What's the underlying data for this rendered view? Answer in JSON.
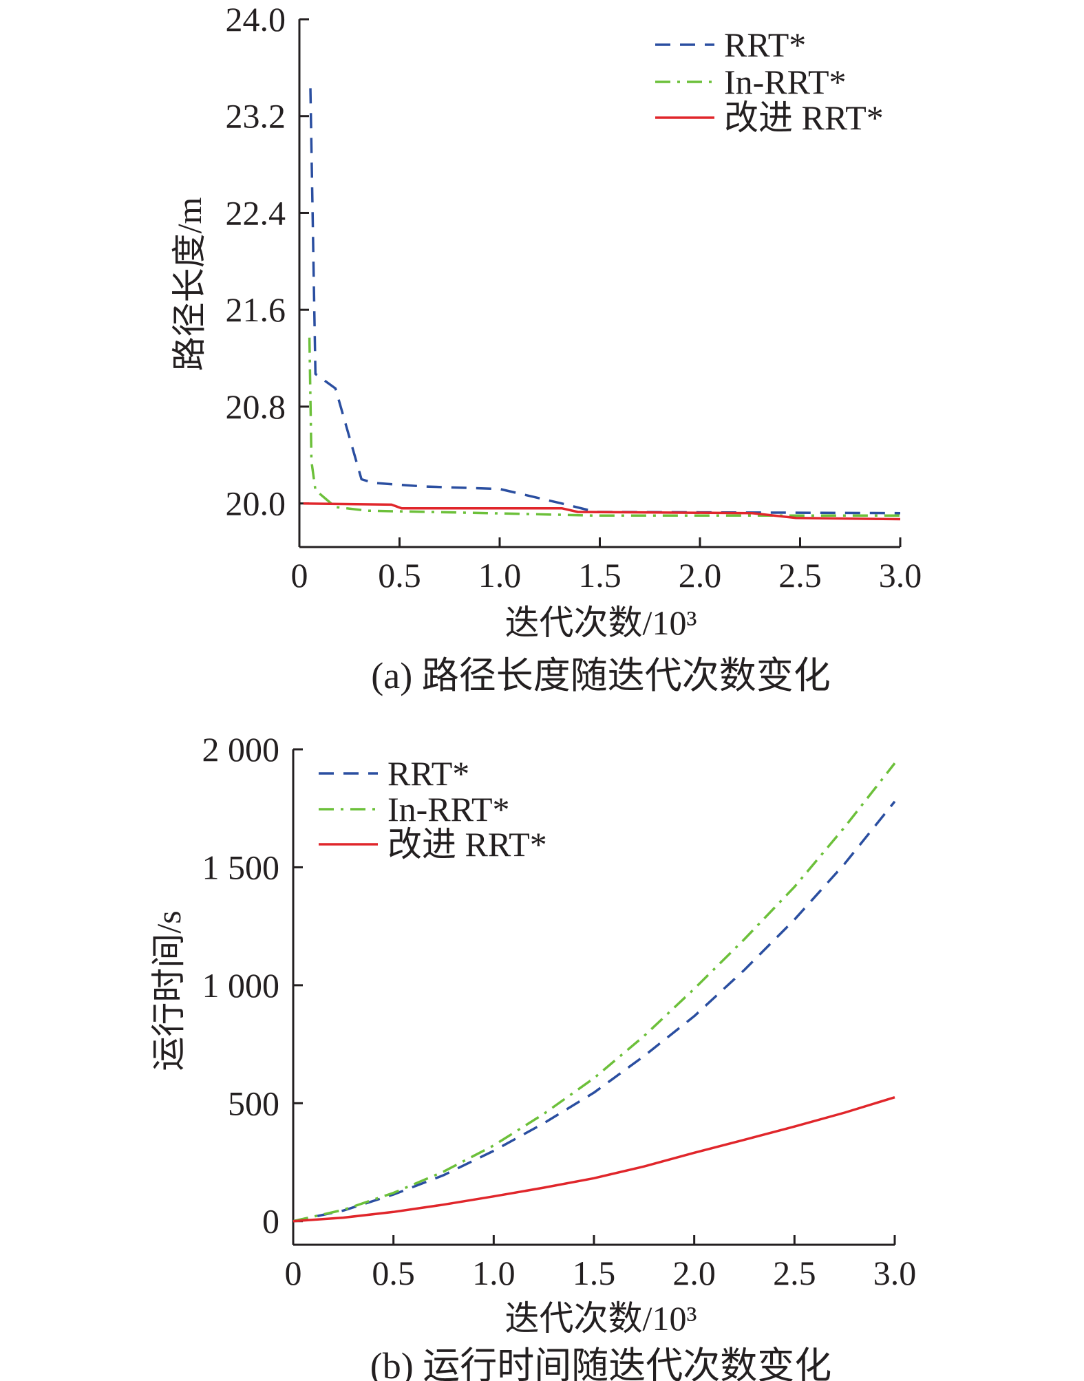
{
  "chart_data": [
    {
      "type": "line",
      "caption": "(a) 路径长度随迭代次数变化",
      "xlabel": "迭代次数/10³",
      "ylabel": "路径长度/m",
      "xlim": [
        0,
        3.0
      ],
      "ylim": [
        19.64,
        24.0
      ],
      "xticks": [
        "0",
        "0.5",
        "1.0",
        "1.5",
        "2.0",
        "2.5",
        "3.0"
      ],
      "xtick_values": [
        0,
        0.5,
        1.0,
        1.5,
        2.0,
        2.5,
        3.0
      ],
      "yticks": [
        "20.0",
        "20.8",
        "21.6",
        "22.4",
        "23.2",
        "24.0"
      ],
      "ytick_values": [
        20.0,
        20.8,
        21.6,
        22.4,
        23.2,
        24.0
      ],
      "grid": false,
      "legend_position": "top-right",
      "series": [
        {
          "name": "RRT*",
          "color": "#2a4ea0",
          "style": "dashed",
          "x": [
            0.055,
            0.08,
            0.18,
            0.31,
            0.37,
            0.62,
            1.0,
            1.31,
            1.48,
            3.0
          ],
          "y": [
            23.43,
            21.07,
            20.95,
            20.2,
            20.17,
            20.14,
            20.12,
            20.0,
            19.93,
            19.92
          ]
        },
        {
          "name": "In-RRT*",
          "color": "#6cc03a",
          "style": "dashdot",
          "x": [
            0.05,
            0.06,
            0.08,
            0.18,
            0.34,
            0.94,
            1.48,
            3.0
          ],
          "y": [
            21.37,
            20.35,
            20.11,
            19.97,
            19.94,
            19.92,
            19.9,
            19.9
          ]
        },
        {
          "name": "改进 RRT*",
          "color": "#e0262b",
          "style": "solid",
          "x": [
            0.02,
            0.46,
            0.51,
            1.31,
            1.39,
            2.26,
            2.48,
            3.0
          ],
          "y": [
            20.0,
            19.99,
            19.96,
            19.96,
            19.93,
            19.92,
            19.88,
            19.87
          ]
        }
      ]
    },
    {
      "type": "line",
      "caption": "(b) 运行时间随迭代次数变化",
      "xlabel": "迭代次数/10³",
      "ylabel": "运行时间/s",
      "xlim": [
        0,
        3.0
      ],
      "ylim": [
        -100,
        2000
      ],
      "xticks": [
        "0",
        "0.5",
        "1.0",
        "1.5",
        "2.0",
        "2.5",
        "3.0"
      ],
      "xtick_values": [
        0,
        0.5,
        1.0,
        1.5,
        2.0,
        2.5,
        3.0
      ],
      "yticks": [
        "0",
        "500",
        "1 000",
        "1 500",
        "2 000"
      ],
      "ytick_values": [
        0,
        500,
        1000,
        1500,
        2000
      ],
      "grid": false,
      "legend_position": "top-left",
      "series": [
        {
          "name": "RRT*",
          "color": "#2a4ea0",
          "style": "dashed",
          "x": [
            0,
            0.25,
            0.5,
            0.75,
            1.0,
            1.25,
            1.5,
            1.75,
            2.0,
            2.25,
            2.5,
            2.75,
            3.0
          ],
          "y": [
            0,
            45,
            113,
            195,
            298,
            415,
            545,
            700,
            869,
            1065,
            1278,
            1515,
            1779
          ]
        },
        {
          "name": "In-RRT*",
          "color": "#6cc03a",
          "style": "dashdot",
          "x": [
            0,
            0.25,
            0.5,
            0.75,
            1.0,
            1.25,
            1.5,
            1.75,
            2.0,
            2.25,
            2.5,
            2.75,
            3.0
          ],
          "y": [
            0,
            48,
            120,
            210,
            321,
            455,
            606,
            785,
            985,
            1195,
            1417,
            1670,
            1941
          ]
        },
        {
          "name": "改进 RRT*",
          "color": "#e0262b",
          "style": "solid",
          "x": [
            0,
            0.25,
            0.5,
            0.75,
            1.0,
            1.25,
            1.5,
            1.75,
            2.0,
            2.25,
            2.5,
            2.75,
            3.0
          ],
          "y": [
            0,
            15,
            39,
            70,
            105,
            142,
            182,
            232,
            290,
            345,
            401,
            460,
            525
          ]
        }
      ]
    }
  ]
}
